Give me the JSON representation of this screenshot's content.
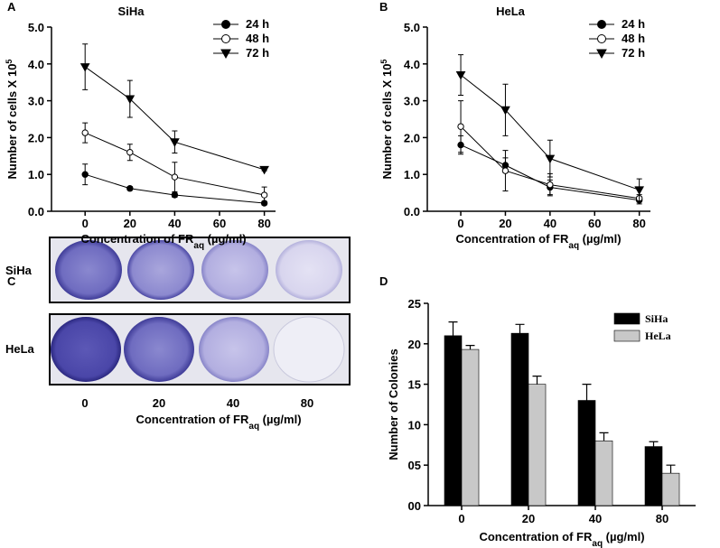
{
  "chart_data": [
    {
      "panel": "A",
      "type": "line",
      "title": "SiHa",
      "x_label": {
        "text": "Concentration of FR",
        "subscript": "aq",
        "suffix": " (µg/ml)"
      },
      "y_label": {
        "text": "Number of cells X 10",
        "superscript": "5"
      },
      "x": [
        0,
        20,
        40,
        80
      ],
      "xlim": [
        -15,
        85
      ],
      "xticks": [
        0,
        20,
        40,
        60,
        80
      ],
      "ylim": [
        0,
        5
      ],
      "yticks": [
        {
          "value": 0,
          "label": "0.0"
        },
        {
          "value": 1,
          "label": "1.0"
        },
        {
          "value": 2,
          "label": "2.0"
        },
        {
          "value": 3,
          "label": "3.0"
        },
        {
          "value": 4,
          "label": "4.0"
        },
        {
          "value": 5,
          "label": "5.0"
        }
      ],
      "legend": "upper right",
      "series": [
        {
          "name": "24 h",
          "color": "#000000",
          "marker": "circle",
          "marker_fill": "#000000",
          "values": [
            1.0,
            0.62,
            0.44,
            0.22
          ],
          "errors": [
            0.28,
            0.05,
            0.06,
            0.05
          ]
        },
        {
          "name": "48 h",
          "color": "#000000",
          "marker": "circle",
          "marker_fill": "#ffffff",
          "values": [
            2.13,
            1.6,
            0.93,
            0.44
          ],
          "errors": [
            0.27,
            0.22,
            0.4,
            0.22
          ]
        },
        {
          "name": "72 h",
          "color": "#000000",
          "marker": "triangle-down",
          "marker_fill": "#000000",
          "values": [
            3.92,
            3.05,
            1.88,
            1.13
          ],
          "errors": [
            0.62,
            0.5,
            0.3,
            0.03
          ]
        }
      ]
    },
    {
      "panel": "B",
      "type": "line",
      "title": "HeLa",
      "x_label": {
        "text": "Concentration of FR",
        "subscript": "aq",
        "suffix": " (µg/ml)"
      },
      "y_label": {
        "text": "Number of cells X 10",
        "superscript": "5"
      },
      "x": [
        0,
        20,
        40,
        80
      ],
      "xlim": [
        -15,
        85
      ],
      "xticks": [
        0,
        20,
        40,
        60,
        80
      ],
      "ylim": [
        0,
        5
      ],
      "yticks": [
        {
          "value": 0,
          "label": "0.0"
        },
        {
          "value": 1,
          "label": "1.0"
        },
        {
          "value": 2,
          "label": "2.0"
        },
        {
          "value": 3,
          "label": "3.0"
        },
        {
          "value": 4,
          "label": "4.0"
        },
        {
          "value": 5,
          "label": "5.0"
        }
      ],
      "legend": "upper right",
      "series": [
        {
          "name": "24 h",
          "color": "#000000",
          "marker": "circle",
          "marker_fill": "#000000",
          "values": [
            1.8,
            1.25,
            0.65,
            0.3
          ],
          "errors": [
            0.25,
            0.2,
            0.2,
            0.1
          ]
        },
        {
          "name": "48 h",
          "color": "#000000",
          "marker": "circle",
          "marker_fill": "#ffffff",
          "values": [
            2.3,
            1.1,
            0.72,
            0.35
          ],
          "errors": [
            0.7,
            0.55,
            0.3,
            0.1
          ]
        },
        {
          "name": "72 h",
          "color": "#000000",
          "marker": "triangle-down",
          "marker_fill": "#000000",
          "values": [
            3.7,
            2.75,
            1.43,
            0.58
          ],
          "errors": [
            0.55,
            0.7,
            0.5,
            0.3
          ]
        }
      ]
    },
    {
      "panel": "D",
      "type": "bar",
      "x_label": {
        "text": "Concentration of FR",
        "subscript": "aq",
        "suffix": " (µg/ml)"
      },
      "y_label": {
        "text": "Number of Colonies"
      },
      "categories": [
        "0",
        "20",
        "40",
        "80"
      ],
      "ylim": [
        0,
        25
      ],
      "yticks": [
        {
          "value": 0,
          "label": "00"
        },
        {
          "value": 5,
          "label": "05"
        },
        10,
        15,
        20,
        25
      ],
      "legend": "upper right",
      "series": [
        {
          "name": "SiHa",
          "color": "#000000",
          "values": [
            21.0,
            21.3,
            13.0,
            7.3
          ],
          "errors": [
            1.7,
            1.1,
            2.0,
            0.6
          ]
        },
        {
          "name": "HeLa",
          "color": "#c8c8c8",
          "values": [
            19.3,
            15.0,
            8.0,
            4.0
          ],
          "errors": [
            0.5,
            1.0,
            1.0,
            1.0
          ]
        }
      ]
    }
  ],
  "image_panel": {
    "panel": "C",
    "row_labels": [
      "SiHa",
      "HeLa"
    ],
    "column_labels": [
      "0",
      "20",
      "40",
      "80"
    ],
    "x_label": {
      "text": "Concentration of FR",
      "subscript": "aq",
      "suffix": " (µg/ml)"
    }
  }
}
